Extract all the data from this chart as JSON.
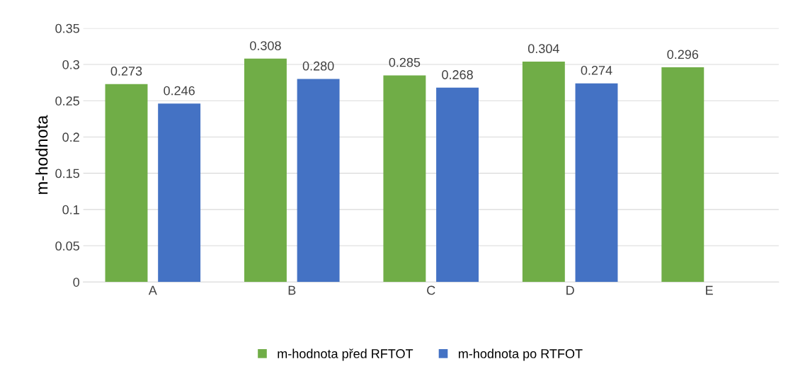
{
  "chart_data": {
    "type": "bar",
    "ylabel": "m-hodnota",
    "categories": [
      "A",
      "B",
      "C",
      "D",
      "E"
    ],
    "series": [
      {
        "name": "m-hodnota před RFTOT",
        "color": "#70ad47",
        "values": [
          0.273,
          0.308,
          0.285,
          0.304,
          0.296
        ],
        "value_labels": [
          "0.273",
          "0.308",
          "0.285",
          "0.304",
          "0.296"
        ]
      },
      {
        "name": "m-hodnota po RTFOT",
        "color": "#4472c4",
        "values": [
          0.246,
          0.28,
          0.268,
          0.274,
          null
        ],
        "value_labels": [
          "0.246",
          "0.280",
          "0.268",
          "0.274",
          null
        ]
      }
    ],
    "ylim": [
      0,
      0.35
    ],
    "yticks": [
      0,
      0.05,
      0.1,
      0.15,
      0.2,
      0.25,
      0.3,
      0.35
    ],
    "grid": "y",
    "legend": "bottom"
  }
}
